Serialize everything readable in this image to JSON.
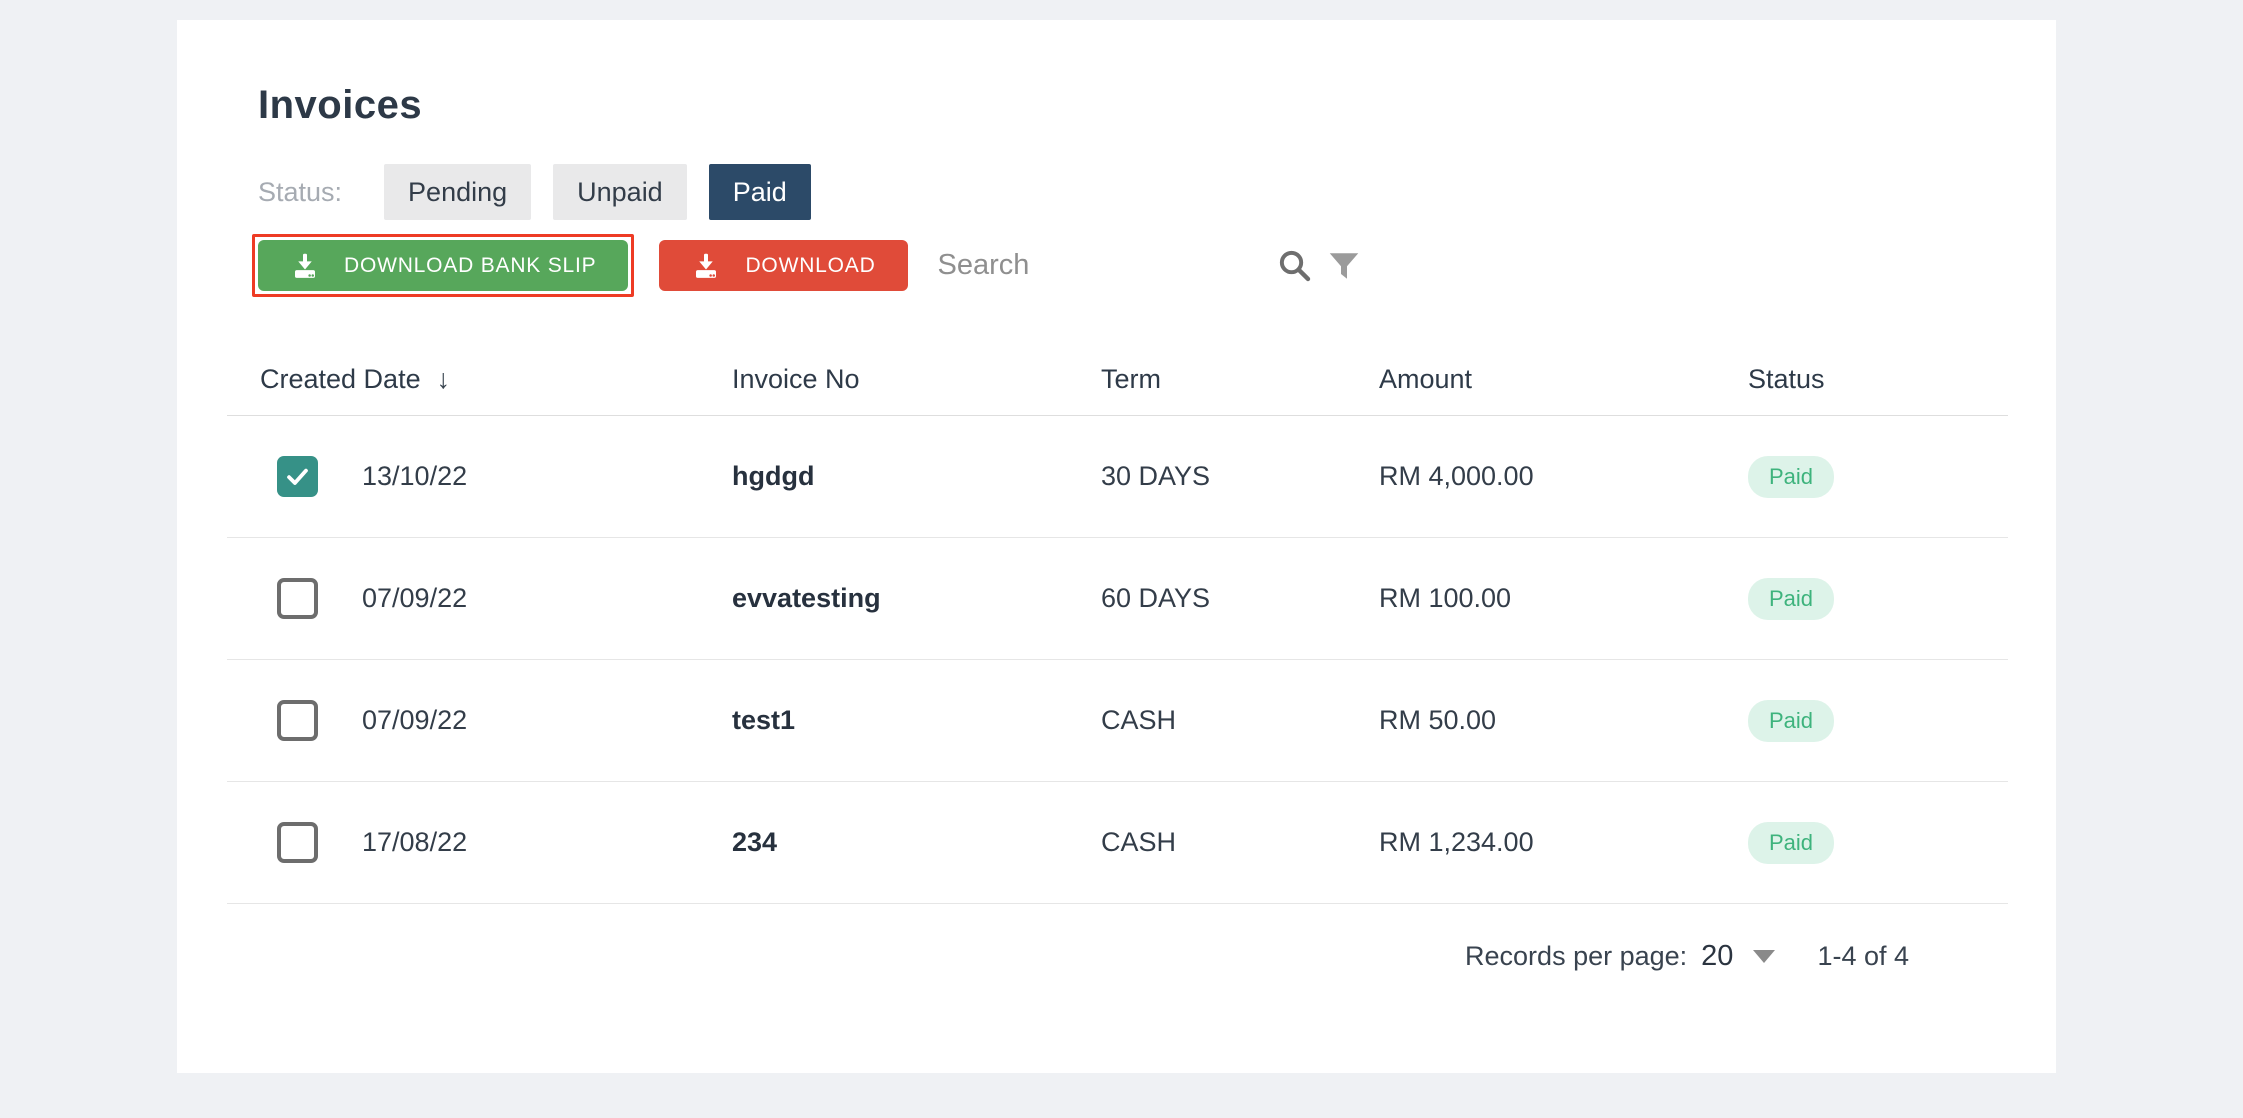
{
  "page": {
    "title": "Invoices"
  },
  "filters": {
    "label": "Status:",
    "options": [
      {
        "label": "Pending",
        "active": false
      },
      {
        "label": "Unpaid",
        "active": false
      },
      {
        "label": "Paid",
        "active": true
      }
    ]
  },
  "actions": {
    "download_bank_slip_label": "DOWNLOAD BANK SLIP",
    "download_label": "DOWNLOAD"
  },
  "search": {
    "placeholder": "Search"
  },
  "table": {
    "columns": [
      "Created Date",
      "Invoice No",
      "Term",
      "Amount",
      "Status"
    ],
    "sorted_column": "Created Date",
    "sort_direction": "desc",
    "sort_arrow": "↓",
    "rows": [
      {
        "checked": true,
        "created_date": "13/10/22",
        "invoice_no": "hgdgd",
        "term": "30 DAYS",
        "amount": "RM 4,000.00",
        "status": "Paid"
      },
      {
        "checked": false,
        "created_date": "07/09/22",
        "invoice_no": "evvatesting",
        "term": "60 DAYS",
        "amount": "RM 100.00",
        "status": "Paid"
      },
      {
        "checked": false,
        "created_date": "07/09/22",
        "invoice_no": "test1",
        "term": "CASH",
        "amount": "RM 50.00",
        "status": "Paid"
      },
      {
        "checked": false,
        "created_date": "17/08/22",
        "invoice_no": "234",
        "term": "CASH",
        "amount": "RM 1,234.00",
        "status": "Paid"
      }
    ]
  },
  "pagination": {
    "records_per_page_label": "Records per page:",
    "records_per_page_value": "20",
    "range_label": "1-4 of 4"
  },
  "colors": {
    "page_background": "#eff1f4",
    "card_background": "#ffffff",
    "title_text": "#2d3947",
    "green_button": "#57a75b",
    "red_button": "#e04b39",
    "highlight_outline": "#ee3b24",
    "active_filter_bg": "#2c4a68",
    "inactive_filter_bg": "#e9e9ea",
    "checkbox_checked": "#369187",
    "status_pill_bg": "#ddf3e9",
    "status_pill_text": "#3eb37d"
  }
}
